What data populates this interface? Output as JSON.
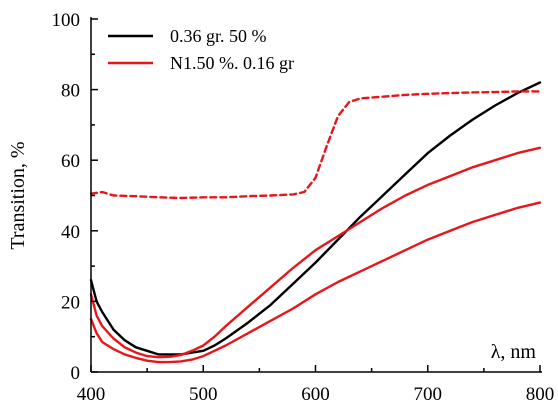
{
  "chart_data": {
    "type": "line",
    "xlabel": "λ, nm",
    "ylabel": "Transition, %",
    "xlim": [
      400,
      800
    ],
    "ylim": [
      0,
      100
    ],
    "xticks": [
      400,
      500,
      600,
      700,
      800
    ],
    "yticks": [
      0,
      20,
      40,
      60,
      80,
      100
    ],
    "legend_position": "top-left",
    "series": [
      {
        "name": "0.36 gr. 50 %",
        "color": "#000000",
        "dash": "solid",
        "x": [
          400,
          405,
          410,
          420,
          430,
          440,
          450,
          460,
          470,
          480,
          490,
          500,
          510,
          520,
          540,
          560,
          580,
          600,
          620,
          640,
          660,
          680,
          700,
          720,
          740,
          760,
          780,
          800
        ],
        "y": [
          26,
          20,
          17,
          12,
          9,
          7,
          6,
          5,
          5,
          5,
          5.5,
          6,
          7.5,
          9.5,
          14,
          19,
          25,
          31,
          37.5,
          44,
          50,
          56,
          62,
          67,
          71.5,
          75.5,
          79,
          82
        ]
      },
      {
        "name": "N1.50 %. 0.16 gr",
        "color": "#e8161b",
        "dash": "solid",
        "x": [
          400,
          405,
          410,
          420,
          430,
          440,
          450,
          460,
          470,
          480,
          490,
          500,
          510,
          520,
          540,
          560,
          580,
          600,
          620,
          640,
          660,
          680,
          700,
          720,
          740,
          760,
          780,
          800
        ],
        "y": [
          22,
          16,
          13,
          9.5,
          7,
          5.5,
          4.5,
          4.2,
          4.3,
          4.8,
          6,
          7.5,
          10,
          13,
          18.5,
          24,
          29.5,
          34.5,
          38.5,
          42.5,
          46.5,
          50,
          53,
          55.5,
          58,
          60,
          62,
          63.5
        ]
      },
      {
        "name": "",
        "color": "#e8161b",
        "dash": "solid",
        "x": [
          400,
          405,
          410,
          420,
          430,
          440,
          450,
          460,
          470,
          480,
          490,
          500,
          510,
          520,
          540,
          560,
          580,
          600,
          620,
          640,
          660,
          680,
          700,
          720,
          740,
          760,
          780,
          800
        ],
        "y": [
          15,
          11,
          8.5,
          6.5,
          5,
          4,
          3.2,
          2.8,
          2.8,
          3,
          3.5,
          4.5,
          6,
          7.5,
          11,
          14.5,
          18,
          22,
          25.5,
          28.5,
          31.5,
          34.5,
          37.5,
          40,
          42.5,
          44.5,
          46.5,
          48
        ]
      },
      {
        "name": "",
        "color": "#e8161b",
        "dash": "dashed",
        "x": [
          400,
          410,
          420,
          440,
          460,
          480,
          500,
          520,
          540,
          560,
          580,
          590,
          600,
          610,
          620,
          630,
          640,
          660,
          680,
          700,
          720,
          740,
          760,
          780,
          800
        ],
        "y": [
          50.5,
          51,
          50,
          49.8,
          49.5,
          49.3,
          49.5,
          49.5,
          49.8,
          50,
          50.3,
          51,
          55,
          64,
          72.5,
          76.5,
          77.5,
          78,
          78.5,
          78.8,
          79,
          79.2,
          79.3,
          79.5,
          79.5
        ]
      }
    ]
  }
}
